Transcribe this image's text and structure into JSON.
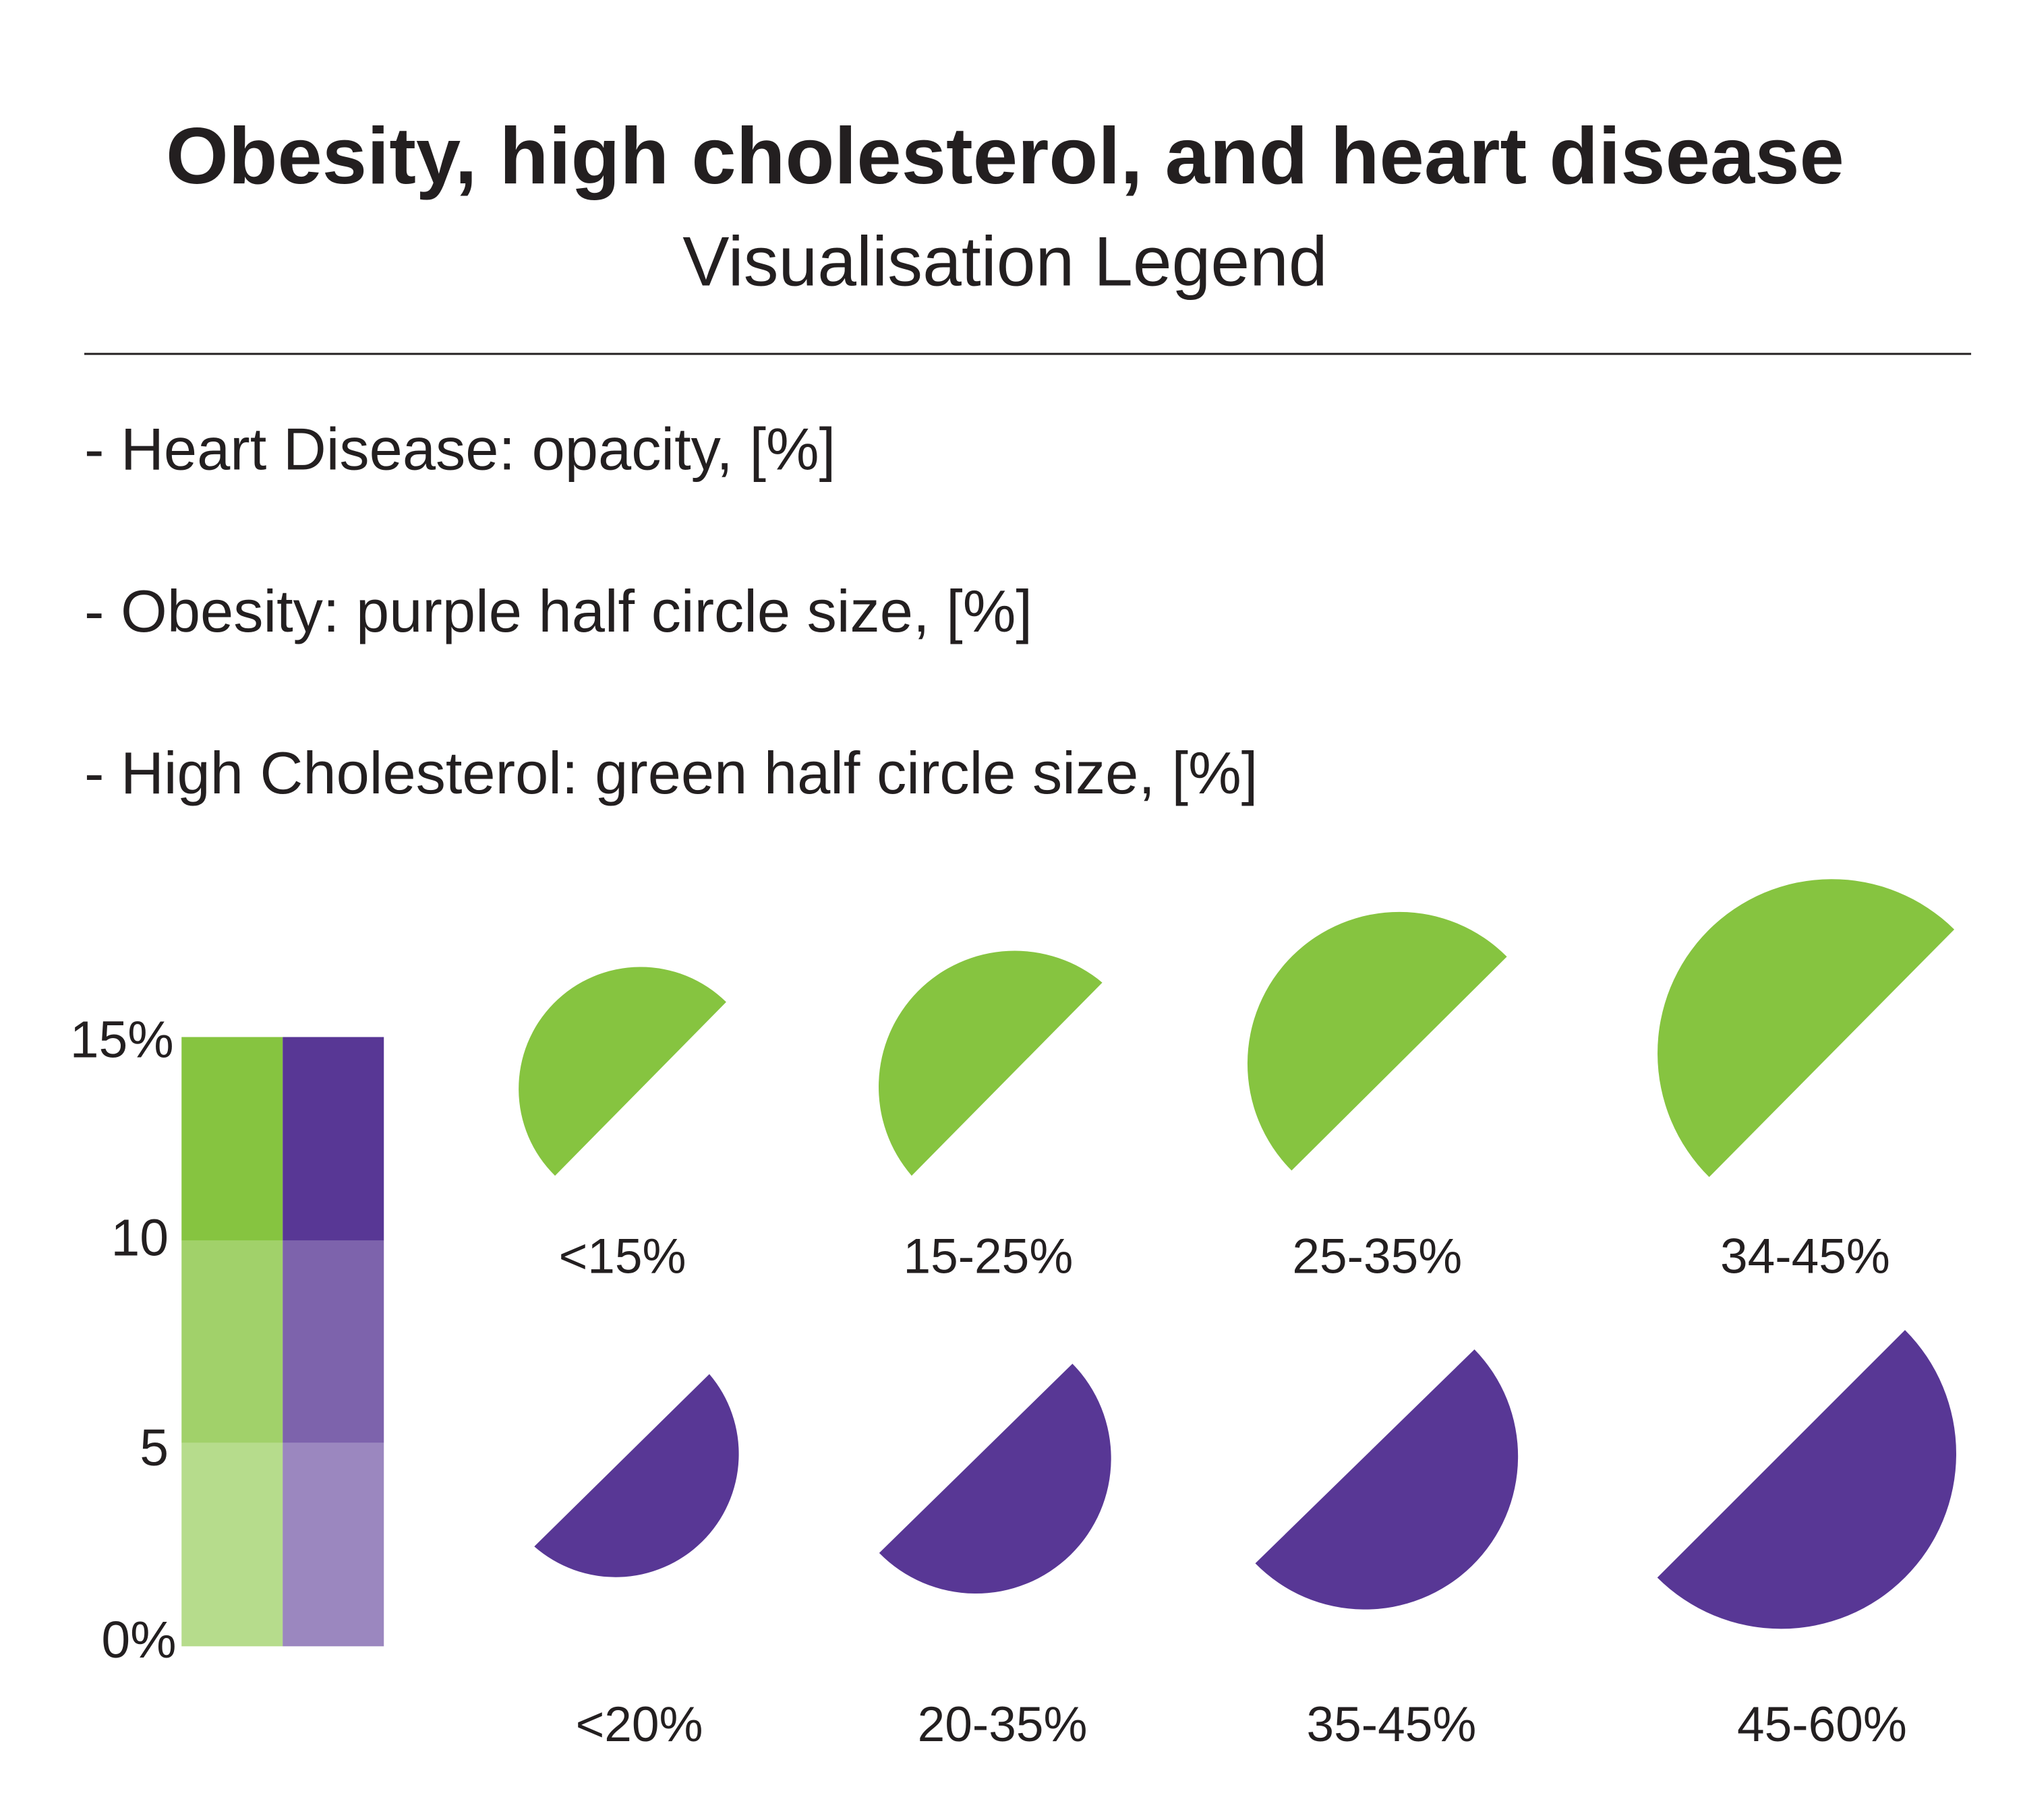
{
  "header": {
    "title": "Obesity, high cholesterol, and heart disease",
    "subtitle": "Visualisation Legend"
  },
  "items": [
    "- Heart Disease: opacity, [%]",
    "- Obesity: purple half circle size, [%]",
    "- High Cholesterol: green half circle size, [%]"
  ],
  "opacity_scale": {
    "labels": [
      "15%",
      "10",
      "5",
      "0%"
    ]
  },
  "cholesterol_sizes": [
    "<15%",
    "15-25%",
    "25-35%",
    "34-45%"
  ],
  "obesity_sizes": [
    "<20%",
    "20-35%",
    "35-45%",
    "45-60%"
  ]
}
